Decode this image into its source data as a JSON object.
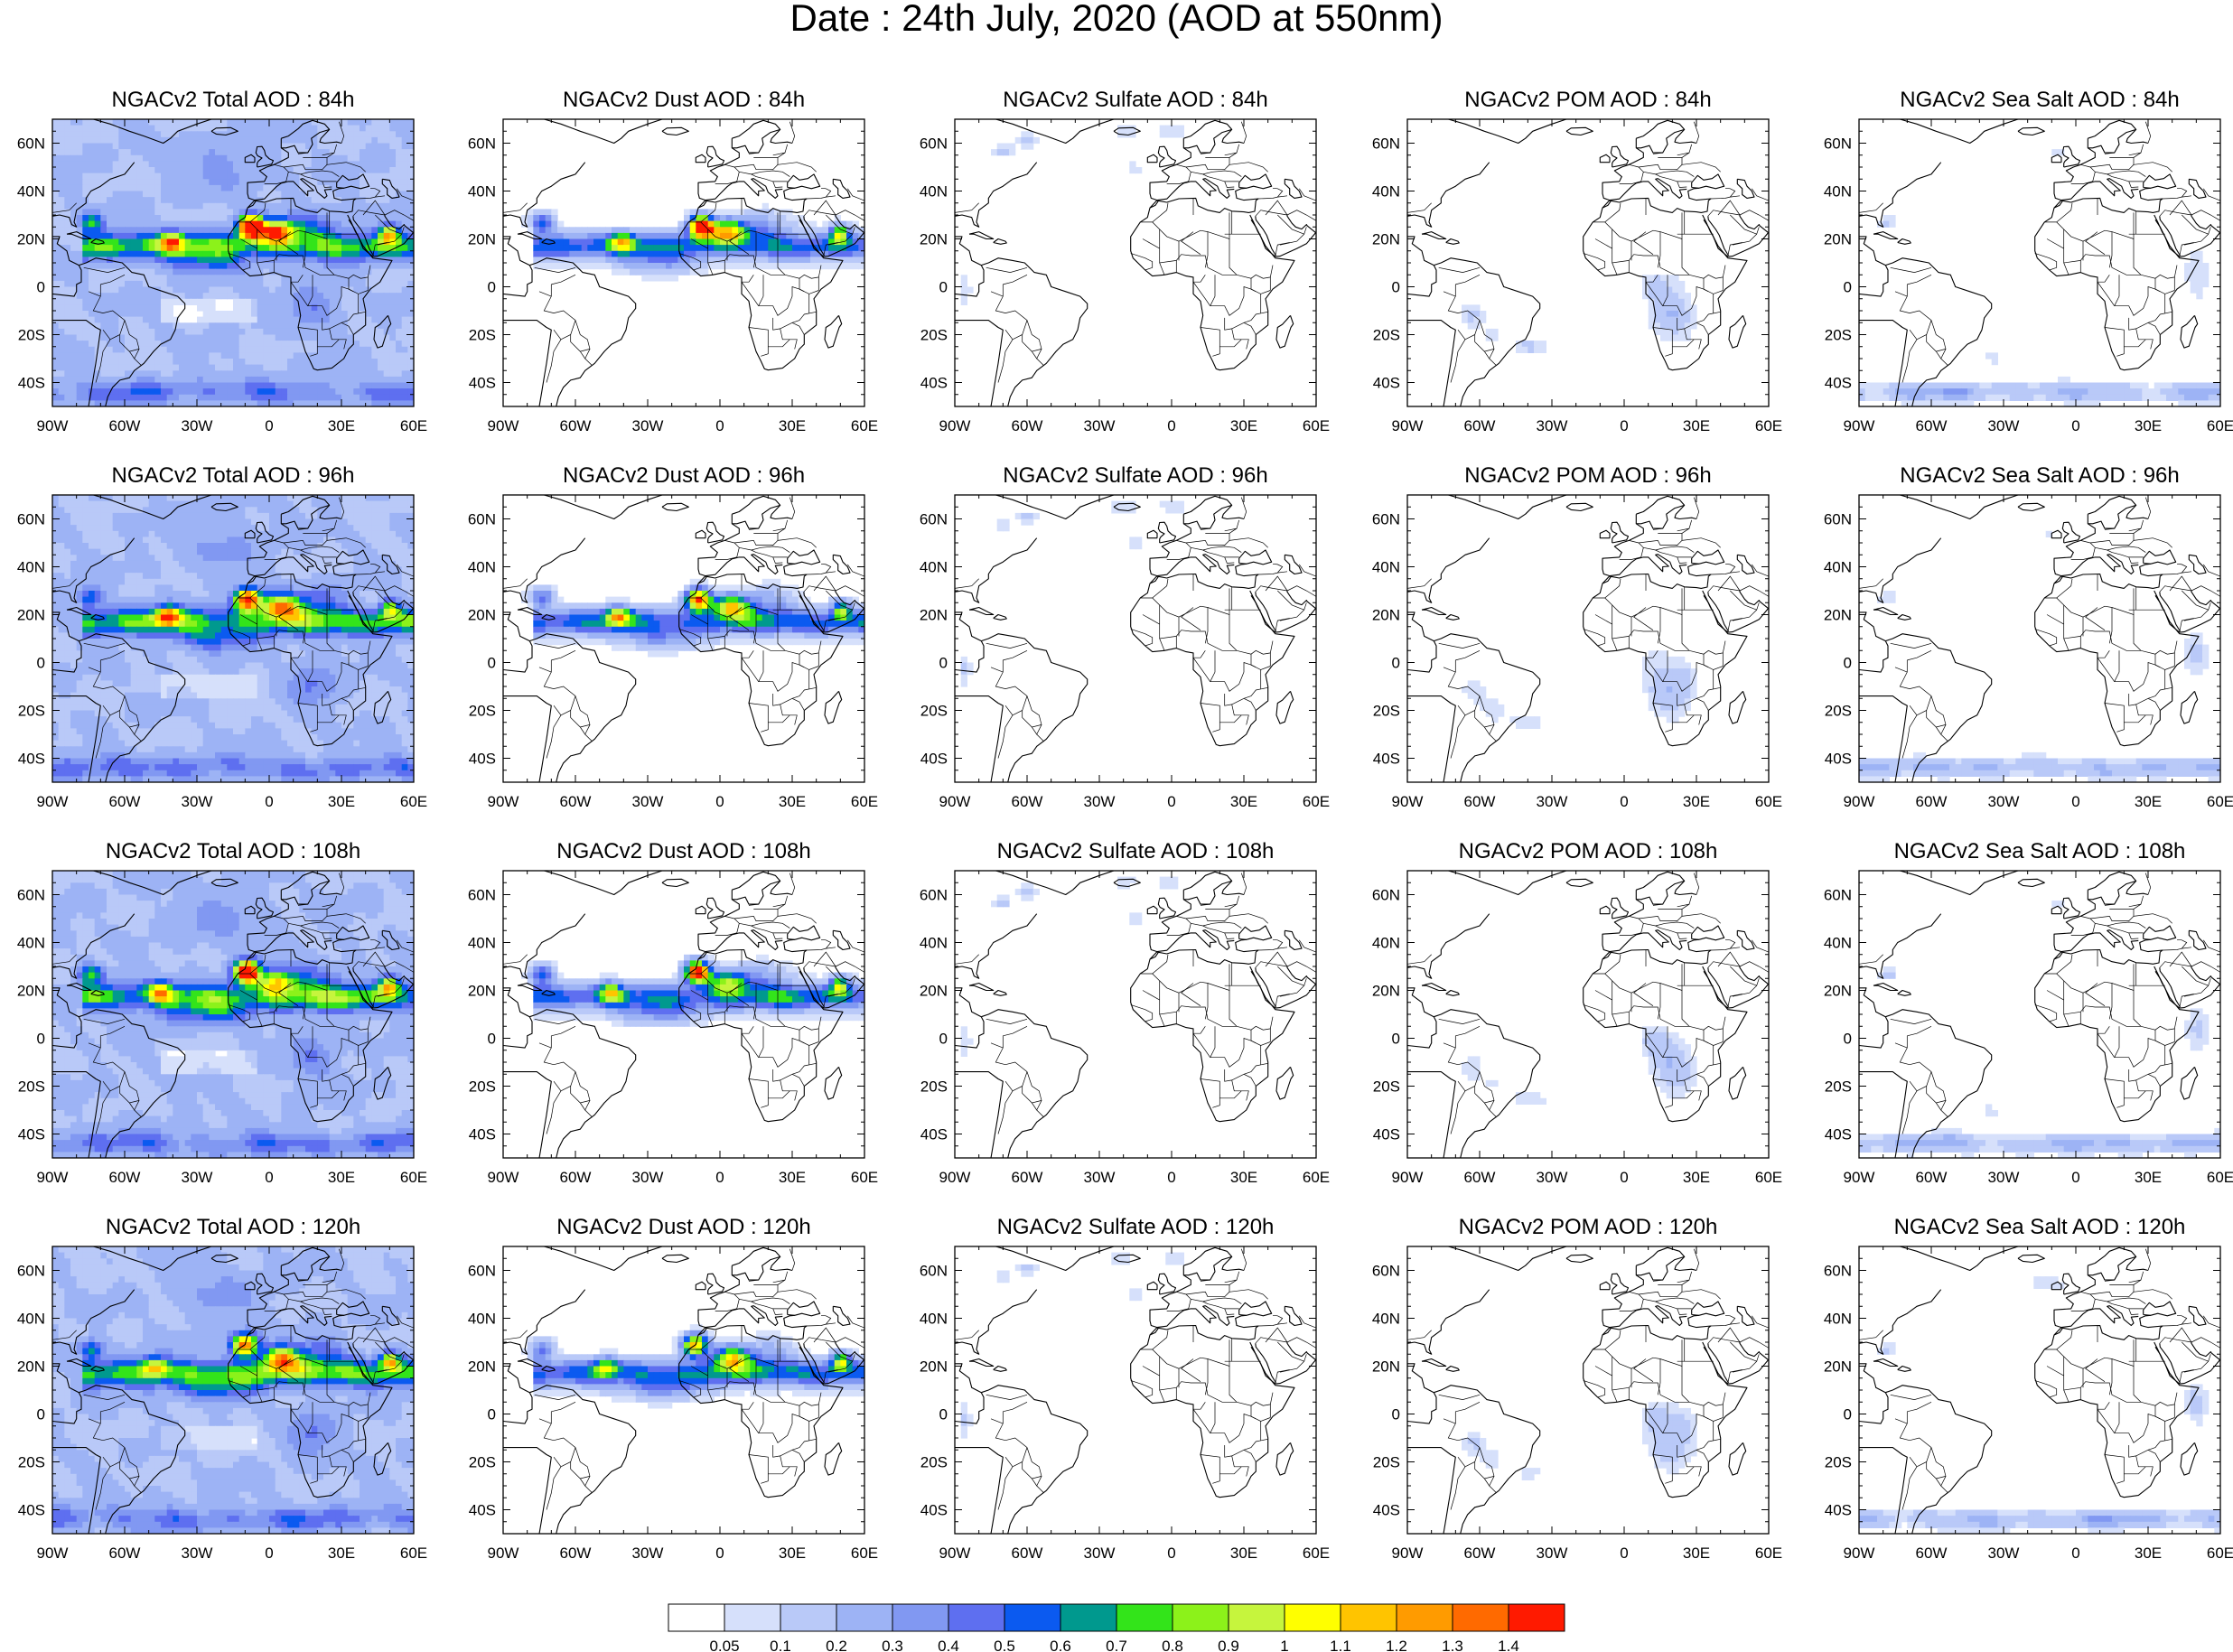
{
  "title": "Date : 24th July, 2020 (AOD at 550nm)",
  "panels": [
    {
      "title": "NGACv2 Total AOD : 84h",
      "species": "total",
      "hour": 84
    },
    {
      "title": "NGACv2 Dust AOD : 84h",
      "species": "dust",
      "hour": 84
    },
    {
      "title": "NGACv2 Sulfate AOD : 84h",
      "species": "sulfate",
      "hour": 84
    },
    {
      "title": "NGACv2 POM AOD : 84h",
      "species": "pom",
      "hour": 84
    },
    {
      "title": "NGACv2 Sea Salt AOD : 84h",
      "species": "seasalt",
      "hour": 84
    },
    {
      "title": "NGACv2 Total AOD : 96h",
      "species": "total",
      "hour": 96
    },
    {
      "title": "NGACv2 Dust AOD : 96h",
      "species": "dust",
      "hour": 96
    },
    {
      "title": "NGACv2 Sulfate AOD : 96h",
      "species": "sulfate",
      "hour": 96
    },
    {
      "title": "NGACv2 POM AOD : 96h",
      "species": "pom",
      "hour": 96
    },
    {
      "title": "NGACv2 Sea Salt AOD : 96h",
      "species": "seasalt",
      "hour": 96
    },
    {
      "title": "NGACv2 Total AOD : 108h",
      "species": "total",
      "hour": 108
    },
    {
      "title": "NGACv2 Dust AOD : 108h",
      "species": "dust",
      "hour": 108
    },
    {
      "title": "NGACv2 Sulfate AOD : 108h",
      "species": "sulfate",
      "hour": 108
    },
    {
      "title": "NGACv2 POM AOD : 108h",
      "species": "pom",
      "hour": 108
    },
    {
      "title": "NGACv2 Sea Salt AOD : 108h",
      "species": "seasalt",
      "hour": 108
    },
    {
      "title": "NGACv2 Total AOD : 120h",
      "species": "total",
      "hour": 120
    },
    {
      "title": "NGACv2 Dust AOD : 120h",
      "species": "dust",
      "hour": 120
    },
    {
      "title": "NGACv2 Sulfate AOD : 120h",
      "species": "sulfate",
      "hour": 120
    },
    {
      "title": "NGACv2 POM AOD : 120h",
      "species": "pom",
      "hour": 120
    },
    {
      "title": "NGACv2 Sea Salt  AOD : 120h",
      "species": "seasalt",
      "hour": 120
    }
  ],
  "axes": {
    "lon_ticks": [
      -90,
      -60,
      -30,
      0,
      30,
      60
    ],
    "lon_labels": [
      "90W",
      "60W",
      "30W",
      "0",
      "30E",
      "60E"
    ],
    "lat_ticks": [
      60,
      40,
      20,
      0,
      -20,
      -40
    ],
    "lat_labels": [
      "60N",
      "40N",
      "20N",
      "0",
      "20S",
      "40S"
    ],
    "lon_range": [
      -90,
      60
    ],
    "lat_range": [
      -50,
      70
    ]
  },
  "colorbar": {
    "labels": [
      "0.05",
      "0.1",
      "0.2",
      "0.3",
      "0.4",
      "0.5",
      "0.6",
      "0.7",
      "0.8",
      "0.9",
      "1",
      "1.1",
      "1.2",
      "1.3",
      "1.4"
    ],
    "colors": [
      "#ffffff",
      "#d6e0fb",
      "#b9c9f8",
      "#9db3f5",
      "#8198f2",
      "#5e6ff0",
      "#0b5af0",
      "#00998e",
      "#33e41a",
      "#8cf21a",
      "#c6f53d",
      "#ffff00",
      "#ffc400",
      "#ff9b00",
      "#ff6a00",
      "#ff1a00"
    ]
  },
  "map_colors": {
    "coast": "#000000",
    "frame": "#000000"
  }
}
